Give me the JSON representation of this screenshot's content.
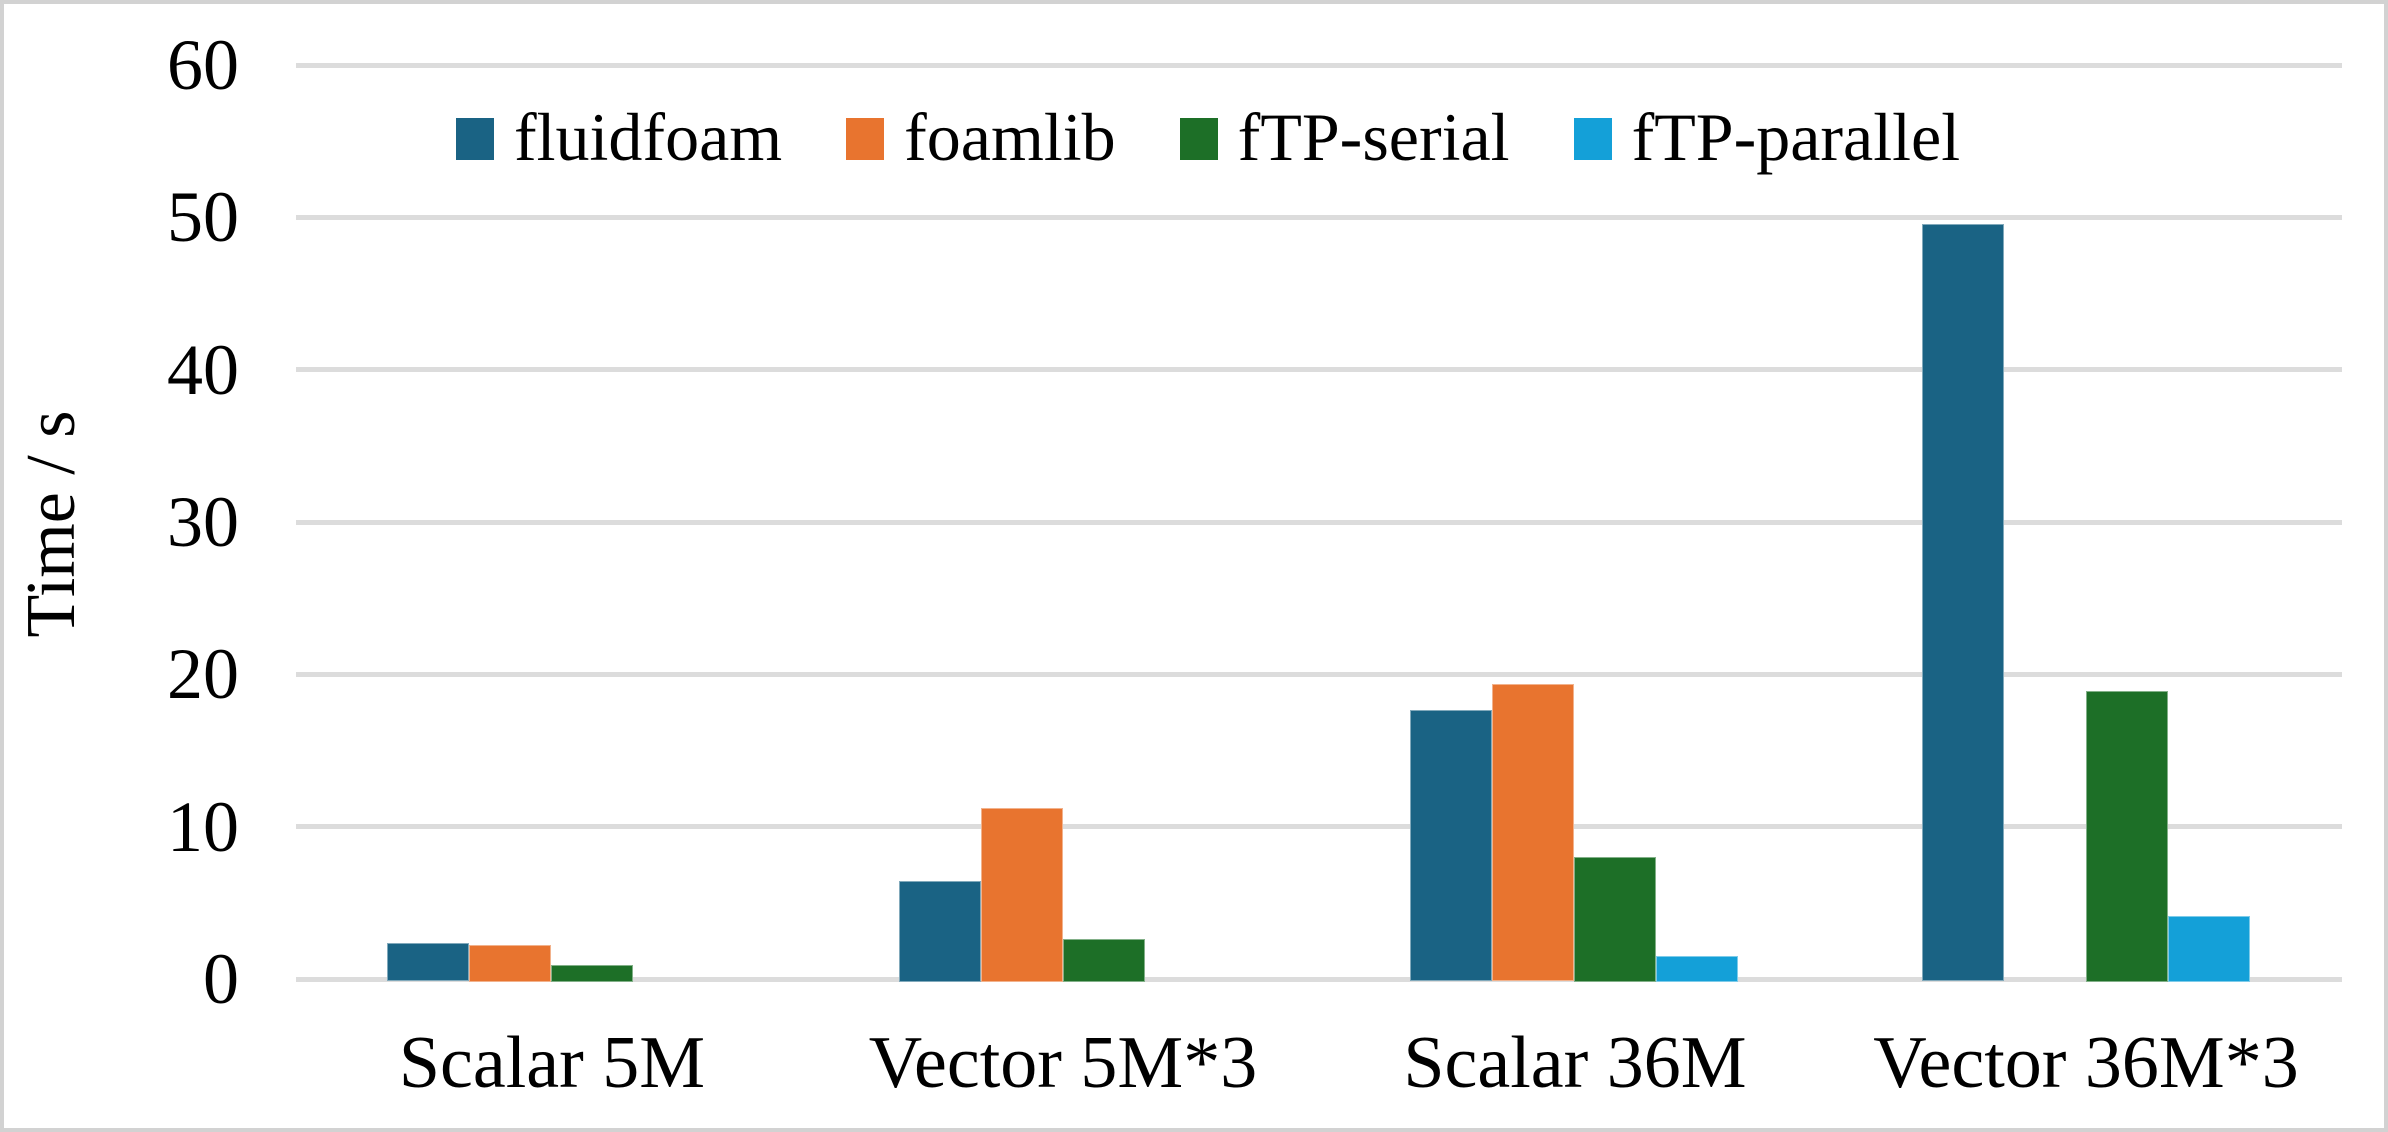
{
  "chart_data": {
    "type": "bar",
    "title": "",
    "ylabel": "Time / s",
    "xlabel": "",
    "ylim": [
      0,
      60
    ],
    "yticks": [
      0,
      10,
      20,
      30,
      40,
      50,
      60
    ],
    "grid": true,
    "legend_position": "top-center",
    "categories": [
      "Scalar 5M",
      "Vector 5M*3",
      "Scalar 36M",
      "Vector 36M*3"
    ],
    "series": [
      {
        "name": "fluidfoam",
        "color": "#1A6384",
        "values": [
          2.5,
          6.6,
          17.8,
          49.7
        ]
      },
      {
        "name": "foamlib",
        "color": "#E8742F",
        "values": [
          2.4,
          11.4,
          19.5,
          0
        ]
      },
      {
        "name": "fTP-serial",
        "color": "#1D6F27",
        "values": [
          1.1,
          2.8,
          8.2,
          19.1
        ]
      },
      {
        "name": "fTP-parallel",
        "color": "#14A0D8",
        "values": [
          0,
          0,
          1.7,
          4.3
        ]
      }
    ],
    "colors": {
      "gridline": "#DCDCDC",
      "frame_border": "#D2D2D2",
      "background": "#FFFFFF",
      "text": "#000000"
    }
  }
}
